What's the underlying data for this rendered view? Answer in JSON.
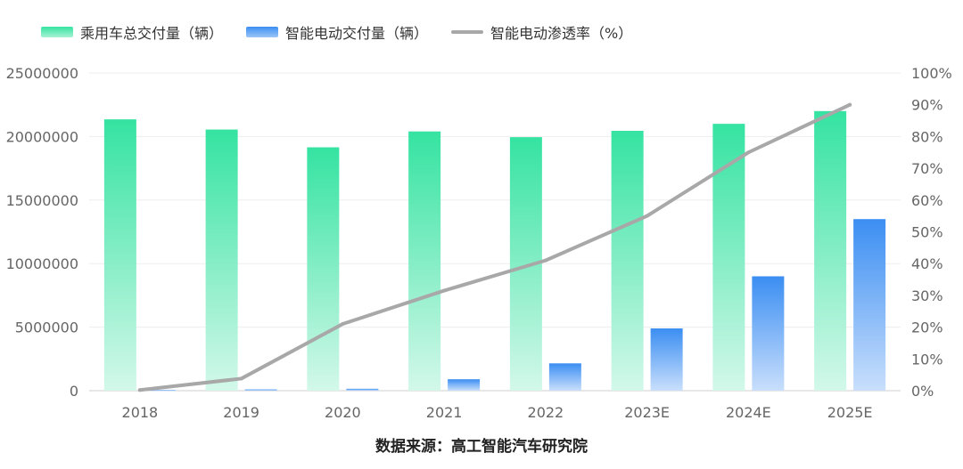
{
  "legend": {
    "series_1": "乘用车总交付量（辆）",
    "series_2": "智能电动交付量（辆）",
    "series_3": "智能电动渗透率（%）"
  },
  "colors": {
    "total_top": "#35E3A1",
    "total_bottom": "#D3F8EA",
    "ev_top": "#3B8EF2",
    "ev_bottom": "#C9DFFC",
    "line": "#A8A8A8",
    "grid": "#EDEDED",
    "axis_text": "#666666"
  },
  "source": "数据来源：高工智能汽车研究院",
  "chart_data": {
    "type": "bar",
    "categories": [
      "2018",
      "2019",
      "2020",
      "2021",
      "2022",
      "2023E",
      "2024E",
      "2025E"
    ],
    "series": [
      {
        "name": "乘用车总交付量（辆）",
        "type": "bar",
        "axis": "left",
        "values": [
          21350000,
          20550000,
          19150000,
          20400000,
          19950000,
          20450000,
          21000000,
          22000000
        ]
      },
      {
        "name": "智能电动交付量（辆）",
        "type": "bar",
        "axis": "left",
        "values": [
          50000,
          100000,
          150000,
          900000,
          2150000,
          4900000,
          9000000,
          13500000
        ]
      },
      {
        "name": "智能电动渗透率（%）",
        "type": "line",
        "axis": "right",
        "values": [
          0.2,
          3.8,
          21,
          31.5,
          41,
          55,
          75,
          90
        ]
      }
    ],
    "ylim_left": [
      0,
      25000000
    ],
    "yticks_left": [
      "0",
      "5000000",
      "10000000",
      "15000000",
      "20000000",
      "25000000"
    ],
    "ylim_right": [
      0,
      100
    ],
    "yticks_right": [
      "0%",
      "10%",
      "20%",
      "30%",
      "40%",
      "50%",
      "60%",
      "70%",
      "80%",
      "90%",
      "100%"
    ],
    "grid": true,
    "legend_position": "top-left"
  }
}
